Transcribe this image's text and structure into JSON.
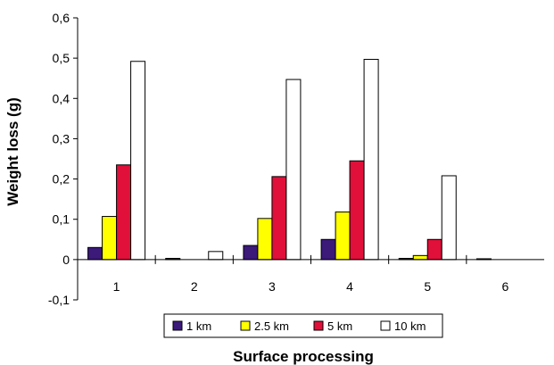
{
  "chart_data": {
    "type": "bar",
    "xlabel": "Surface processing",
    "ylabel": "Weight loss (g)",
    "categories": [
      "1",
      "2",
      "3",
      "4",
      "5",
      "6"
    ],
    "y_tick_labels": [
      "-0,1",
      "0",
      "0,1",
      "0,2",
      "0,3",
      "0,4",
      "0,5",
      "0,6"
    ],
    "ylim": [
      -0.1,
      0.6
    ],
    "grid": false,
    "legend_position": "bottom",
    "series": [
      {
        "name": "1 km",
        "color": "#3b1a7a",
        "values": [
          0.03,
          0.003,
          0.035,
          0.05,
          0.003,
          0.002
        ]
      },
      {
        "name": "2.5 km",
        "color": "#ffff00",
        "values": [
          0.107,
          0.0,
          0.102,
          0.118,
          0.01,
          0.0
        ]
      },
      {
        "name": "5 km",
        "color": "#e0103a",
        "values": [
          0.235,
          0.0,
          0.206,
          0.245,
          0.05,
          0.0
        ]
      },
      {
        "name": "10 km",
        "color": "#ffffff",
        "values": [
          0.492,
          0.02,
          0.447,
          0.497,
          0.208,
          0.0
        ]
      }
    ]
  }
}
